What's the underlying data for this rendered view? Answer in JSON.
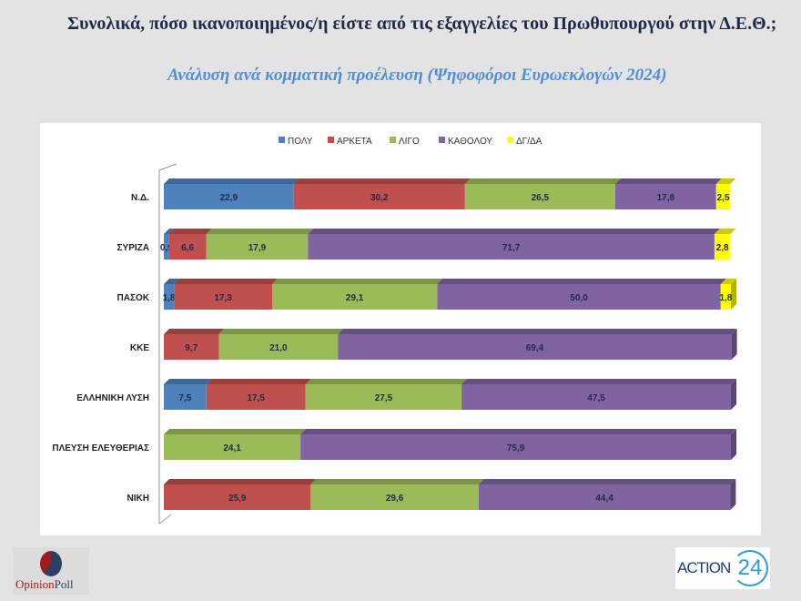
{
  "title": "Συνολικά, πόσο ικανοποιημένος/η είστε από τις εξαγγελίες του Πρωθυπουργού στην Δ.Ε.Θ.;",
  "subtitle": "Ανάλυση ανά κομματική προέλευση (Ψηφοφόροι Ευρωεκλογών 2024)",
  "logos": {
    "left": "OpinionPoll",
    "right": "ACTION 24"
  },
  "chart_data": {
    "type": "bar",
    "orientation": "horizontal-stacked-100",
    "title": "Συνολικά, πόσο ικανοποιημένος/η είστε από τις εξαγγελίες του Πρωθυπουργού στην Δ.Ε.Θ.;",
    "legend_position": "top",
    "categories": [
      "Ν.Δ.",
      "ΣΥΡΙΖΑ",
      "ΠΑΣΟΚ",
      "ΚΚΕ",
      "ΕΛΛΗΝΙΚΗ ΛΥΣΗ",
      "ΠΛΕΥΣΗ ΕΛΕΥΘΕΡΙΑΣ",
      "ΝΙΚΗ"
    ],
    "series": [
      {
        "name": "ΠΟΛΥ",
        "color": "#4f81bd",
        "values": [
          22.9,
          0.9,
          1.8,
          0,
          7.5,
          0,
          0
        ],
        "labels": [
          "22,9",
          "0,9",
          "1,8",
          "",
          "7,5",
          "",
          ""
        ]
      },
      {
        "name": "ΑΡΚΕΤΑ",
        "color": "#c0504d",
        "values": [
          30.2,
          6.6,
          17.3,
          9.7,
          17.5,
          0,
          25.9
        ],
        "labels": [
          "30,2",
          "6,6",
          "17,3",
          "9,7",
          "17,5",
          "",
          "25,9"
        ]
      },
      {
        "name": "ΛΙΓΟ",
        "color": "#9bbb59",
        "values": [
          26.5,
          17.9,
          29.1,
          21.0,
          27.5,
          24.1,
          29.6
        ],
        "labels": [
          "26,5",
          "17,9",
          "29,1",
          "21,0",
          "27,5",
          "24,1",
          "29,6"
        ]
      },
      {
        "name": "ΚΑΘΟΛΟΥ",
        "color": "#8064a2",
        "values": [
          17.8,
          71.7,
          50.0,
          69.4,
          47.5,
          75.9,
          44.4
        ],
        "labels": [
          "17,8",
          "71,7",
          "50,0",
          "69,4",
          "47,5",
          "75,9",
          "44,4"
        ]
      },
      {
        "name": "ΔΓ/ΔΑ",
        "color": "#ffff00",
        "values": [
          2.5,
          2.8,
          1.8,
          0,
          0,
          0,
          0
        ],
        "labels": [
          "2,5",
          "2,8",
          "1,8",
          "",
          "",
          "",
          ""
        ]
      }
    ],
    "xlim": [
      0,
      100
    ]
  }
}
